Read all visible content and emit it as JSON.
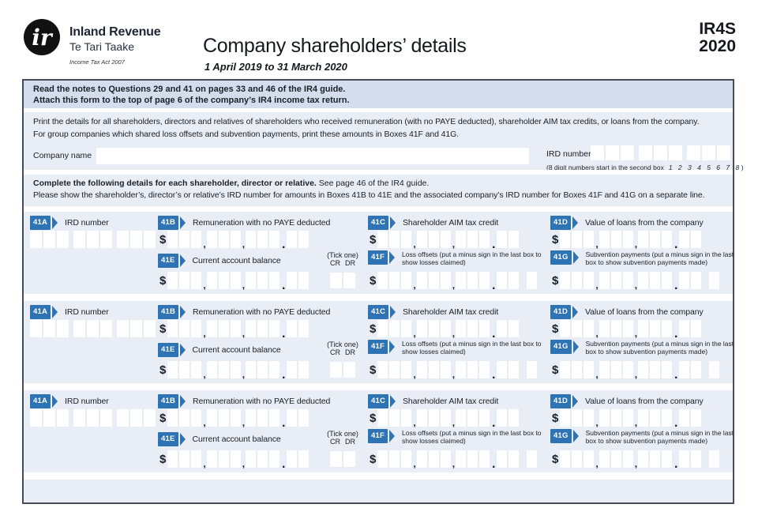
{
  "header": {
    "brand_name": "Inland Revenue",
    "brand_maori": "Te Tari Taake",
    "brand_act": "Income Tax Act 2007",
    "title": "Company shareholders’ details",
    "period": "1 April 2019 to 31 March 2020",
    "form_code": "IR4S",
    "form_year": "2020"
  },
  "notes": {
    "line1": "Read the notes to Questions 29 and 41 on pages 33 and 46 of the IR4 guide.",
    "line2": "Attach this form to the top of page 6 of the company’s IR4 income tax return."
  },
  "intro": {
    "line1": "Print the details for all shareholders, directors and relatives of shareholders who received remuneration (with no PAYE deducted), shareholder AIM tax credits, or loans from the company.",
    "line2": "For group companies which shared loss offsets and subvention payments, print these amounts in Boxes 41F and 41G."
  },
  "company": {
    "name_label": "Company name",
    "name_value": "",
    "ird_label": "IRD number",
    "ird_hint": "(8 digit numbers start in the second box",
    "ird_hint_digits": "1 2 3 4 5 6 7 8",
    "ird_hint_close": ")"
  },
  "section": {
    "bold": "Complete the following details for each shareholder, director or relative.",
    "normal": " See page 46 of the IR4 guide.",
    "line2": "Please show the shareholder’s, director’s or relative’s IRD number for amounts in Boxes 41B to 41E and the associated company’s IRD number for Boxes 41F and 41G on a separate line."
  },
  "fields": {
    "currency": "$",
    "a": {
      "tag": "41A",
      "label": "IRD number"
    },
    "b": {
      "tag": "41B",
      "label": "Remuneration with no PAYE deducted"
    },
    "c": {
      "tag": "41C",
      "label": "Shareholder AIM tax credit"
    },
    "d": {
      "tag": "41D",
      "label": "Value of loans from the company"
    },
    "e": {
      "tag": "41E",
      "label": "Current account balance"
    },
    "f": {
      "tag": "41F",
      "label": "Loss offsets (put a minus sign in the last box to show losses claimed)"
    },
    "g": {
      "tag": "41G",
      "label": "Subvention payments (put a minus sign in the last box to show subvention payments made)"
    },
    "tick": {
      "line1": "(Tick one)",
      "cr": "CR",
      "dr": "DR"
    }
  },
  "colors": {
    "accent_blue": "#2e74b5",
    "form_bg": "#e9edf6",
    "notes_bg": "#d4ddee",
    "border": "#454d5c"
  }
}
